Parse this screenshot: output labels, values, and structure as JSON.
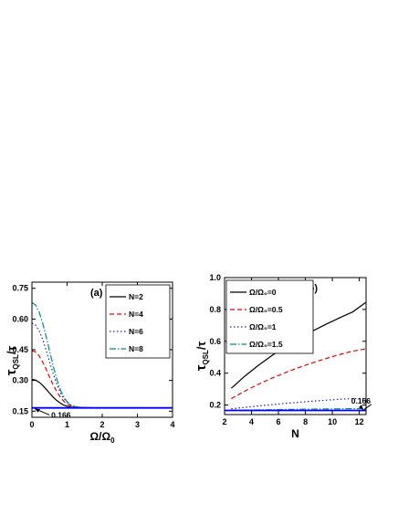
{
  "chart_data": [
    {
      "type": "line",
      "panel_label": "(a)",
      "xlabel": "Ω/Ω",
      "xlabel_sub": "0",
      "ylabel": "τ",
      "ylabel_sub": "QSL",
      "ylabel_tail": "/τ",
      "xlim": [
        0,
        4
      ],
      "ylim": [
        0.12,
        0.78
      ],
      "xticks": [
        0,
        1,
        2,
        3,
        4
      ],
      "yticks": [
        0.15,
        0.3,
        0.45,
        0.6,
        0.75
      ],
      "ytick_labels": [
        "0.15",
        "0.30",
        "0.45",
        "0.60",
        "0.75"
      ],
      "legend_position": "top-right",
      "annotation": {
        "text": "0.166",
        "x": 0.55,
        "y": 0.118
      },
      "series": [
        {
          "name": "N=2",
          "color": "#000000",
          "dash": "solid",
          "x": [
            0,
            0.1,
            0.2,
            0.3,
            0.4,
            0.5,
            0.6,
            0.7,
            0.8,
            0.9,
            1.0,
            1.1,
            1.2,
            1.4,
            1.6,
            2.0,
            3.0,
            4.0
          ],
          "y": [
            0.305,
            0.302,
            0.292,
            0.277,
            0.258,
            0.238,
            0.219,
            0.203,
            0.19,
            0.18,
            0.174,
            0.17,
            0.168,
            0.167,
            0.166,
            0.166,
            0.166,
            0.166
          ]
        },
        {
          "name": "N=4",
          "color": "#ee0000",
          "dash": "5,3",
          "x": [
            0,
            0.1,
            0.2,
            0.3,
            0.4,
            0.5,
            0.6,
            0.7,
            0.8,
            0.9,
            1.0,
            1.1,
            1.2,
            1.4,
            1.6,
            2.0,
            3.0,
            4.0
          ],
          "y": [
            0.445,
            0.44,
            0.421,
            0.392,
            0.356,
            0.317,
            0.28,
            0.247,
            0.22,
            0.199,
            0.185,
            0.176,
            0.171,
            0.168,
            0.167,
            0.166,
            0.166,
            0.166
          ]
        },
        {
          "name": "N=6",
          "color": "#1c1cc8",
          "dash": "1.5,2.5",
          "x": [
            0,
            0.1,
            0.2,
            0.3,
            0.4,
            0.5,
            0.6,
            0.7,
            0.8,
            0.9,
            1.0,
            1.1,
            1.2,
            1.4,
            1.6,
            2.0,
            3.0,
            4.0
          ],
          "y": [
            0.58,
            0.571,
            0.545,
            0.503,
            0.45,
            0.392,
            0.335,
            0.285,
            0.243,
            0.213,
            0.193,
            0.18,
            0.173,
            0.168,
            0.167,
            0.166,
            0.166,
            0.166
          ]
        },
        {
          "name": "N=8",
          "color": "#008b8b",
          "dash": "7,2,1.5,2",
          "x": [
            0,
            0.1,
            0.2,
            0.3,
            0.4,
            0.5,
            0.6,
            0.7,
            0.8,
            0.9,
            1.0,
            1.1,
            1.2,
            1.4,
            1.6,
            2.0,
            3.0,
            4.0
          ],
          "y": [
            0.68,
            0.669,
            0.636,
            0.583,
            0.517,
            0.445,
            0.374,
            0.31,
            0.258,
            0.221,
            0.196,
            0.181,
            0.173,
            0.168,
            0.167,
            0.166,
            0.166,
            0.166
          ]
        },
        {
          "name": "",
          "color": "#0000ff",
          "dash": "solid",
          "width": 1.8,
          "x": [
            0,
            4
          ],
          "y": [
            0.166,
            0.166
          ]
        }
      ]
    },
    {
      "type": "line",
      "panel_label": "(b)",
      "xlabel": "N",
      "ylabel": "τ",
      "ylabel_sub": "QSL",
      "ylabel_tail": "/τ",
      "xlim": [
        2,
        12.5
      ],
      "ylim": [
        0.14,
        1.0
      ],
      "xticks": [
        2,
        4,
        6,
        8,
        10,
        12
      ],
      "yticks": [
        0.2,
        0.4,
        0.6,
        0.8,
        1.0
      ],
      "ytick_labels": [
        "0.2",
        "0.4",
        "0.6",
        "0.8",
        "1.0"
      ],
      "legend_position": "top-left",
      "annotation": {
        "text": "0.166",
        "x": 11.4,
        "y": 0.21
      },
      "series": [
        {
          "name": "Ω/Ω₀=0",
          "color": "#000000",
          "dash": "solid",
          "x": [
            2.5,
            3.5,
            4.5,
            5.5,
            6.5,
            7.5,
            8.5,
            9.5,
            10.5,
            11.5,
            12.5
          ],
          "y": [
            0.305,
            0.381,
            0.448,
            0.51,
            0.566,
            0.616,
            0.663,
            0.706,
            0.746,
            0.784,
            0.845
          ]
        },
        {
          "name": "Ω/Ω₀=0.5",
          "color": "#ee0000",
          "dash": "5,3",
          "x": [
            2.5,
            3.5,
            4.5,
            5.5,
            6.5,
            7.5,
            8.5,
            9.5,
            10.5,
            11.5,
            12.5
          ],
          "y": [
            0.24,
            0.287,
            0.33,
            0.368,
            0.403,
            0.435,
            0.464,
            0.491,
            0.516,
            0.538,
            0.553
          ]
        },
        {
          "name": "Ω/Ω₀=1",
          "color": "#1c1cc8",
          "dash": "1.5,2.5",
          "x": [
            2.5,
            3.5,
            4.5,
            5.5,
            6.5,
            7.5,
            8.5,
            9.5,
            10.5,
            11.5,
            12.5
          ],
          "y": [
            0.176,
            0.185,
            0.194,
            0.202,
            0.21,
            0.217,
            0.224,
            0.23,
            0.236,
            0.24,
            0.241
          ]
        },
        {
          "name": "Ω/Ω₀=1.5",
          "color": "#008b8b",
          "dash": "7,2,1.5,2",
          "x": [
            2.5,
            3.5,
            4.5,
            5.5,
            6.5,
            7.5,
            8.5,
            9.5,
            10.5,
            11.5,
            12.5
          ],
          "y": [
            0.167,
            0.168,
            0.169,
            0.17,
            0.172,
            0.173,
            0.174,
            0.175,
            0.176,
            0.177,
            0.178
          ]
        },
        {
          "name": "",
          "color": "#0000ff",
          "dash": "solid",
          "width": 1.8,
          "x": [
            2,
            12.5
          ],
          "y": [
            0.166,
            0.166
          ]
        }
      ]
    }
  ]
}
